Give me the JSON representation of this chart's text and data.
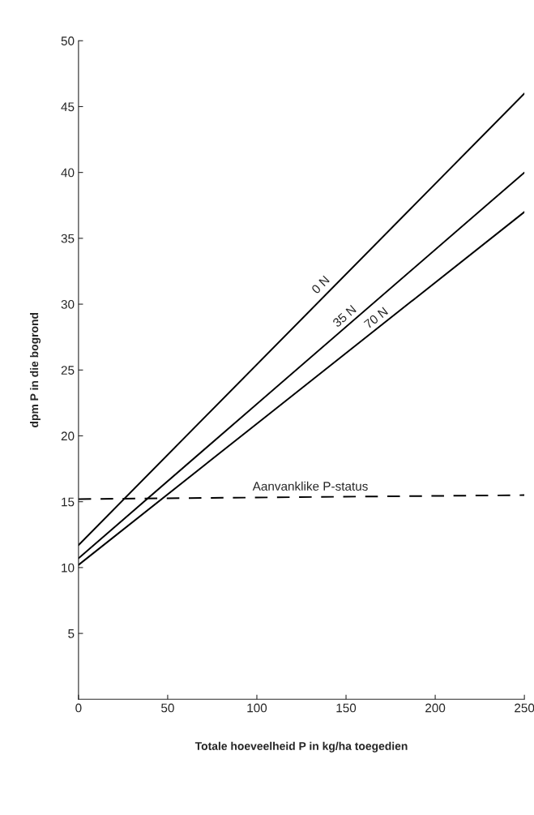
{
  "chart_data": {
    "type": "line",
    "xlabel": "Totale hoeveelheid P in kg/ha toegedien",
    "ylabel": "dpm P in die bogrond",
    "series": [
      {
        "name": "0 N",
        "values": [
          11.7,
          46
        ],
        "color": "#000000"
      },
      {
        "name": "35 N",
        "values": [
          10.7,
          40
        ],
        "color": "#000000"
      },
      {
        "name": "70 N",
        "values": [
          10.2,
          37
        ],
        "color": "#000000"
      },
      {
        "name": "Aanvanklike P-status",
        "values": [
          15.2,
          15.5
        ],
        "color": "#000000",
        "line_style": "dashed"
      }
    ],
    "x": [
      0,
      250
    ],
    "xlim": [
      0,
      250
    ],
    "xticks": [
      0,
      50,
      100,
      150,
      200,
      250
    ],
    "ylim": [
      0,
      50
    ],
    "yticks": [
      5,
      10,
      15,
      20,
      25,
      30,
      35,
      40,
      45,
      50
    ],
    "grid": false,
    "legend": false,
    "marker": "none"
  }
}
